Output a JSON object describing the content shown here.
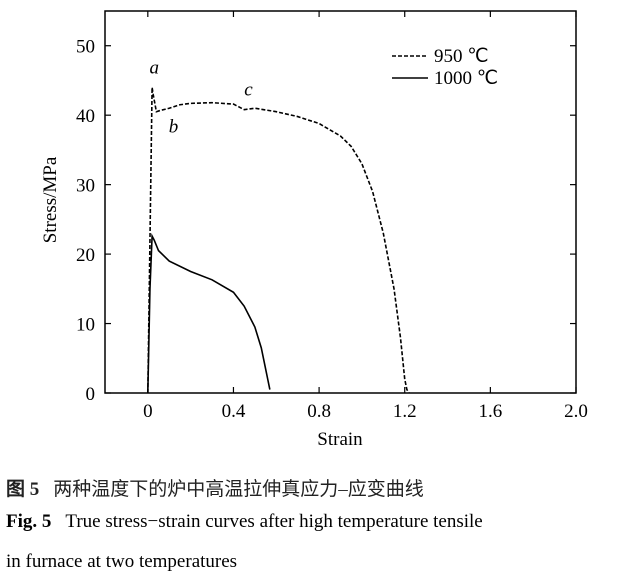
{
  "chart_data": {
    "type": "line",
    "x_label": "Strain",
    "y_label": "Stress/MPa",
    "xlim": [
      -0.2,
      2.0
    ],
    "ylim": [
      0,
      55
    ],
    "xticks": [
      0,
      0.4,
      0.8,
      1.2,
      1.6,
      {
        "value": 2.0,
        "label": "2.0"
      }
    ],
    "yticks": [
      0,
      10,
      20,
      30,
      40,
      50
    ],
    "legend": "upper right",
    "annotations": [
      "a",
      "b",
      "c"
    ],
    "series": [
      {
        "name": "950 ℃",
        "color": "#000000",
        "dashed": true,
        "x": [
          0,
          0.02,
          0.025,
          0.04,
          0.06,
          0.1,
          0.15,
          0.2,
          0.3,
          0.4,
          0.45,
          0.5,
          0.6,
          0.7,
          0.8,
          0.9,
          0.95,
          1.0,
          1.05,
          1.1,
          1.15,
          1.18,
          1.2,
          1.21,
          1.22
        ],
        "values": [
          0,
          44,
          43,
          40.5,
          40.7,
          41,
          41.5,
          41.7,
          41.8,
          41.6,
          40.8,
          41,
          40.5,
          39.8,
          38.8,
          37,
          35.5,
          33,
          29,
          23,
          15,
          8,
          2,
          0.5,
          0
        ]
      },
      {
        "name": "1000 ℃",
        "color": "#000000",
        "dashed": false,
        "x": [
          0,
          0.01,
          0.02,
          0.03,
          0.05,
          0.1,
          0.2,
          0.3,
          0.4,
          0.45,
          0.5,
          0.53,
          0.55,
          0.56,
          0.57
        ],
        "values": [
          0,
          15,
          22.6,
          22,
          20.5,
          19,
          17.5,
          16.3,
          14.5,
          12.5,
          9.5,
          6.5,
          3.5,
          2,
          0.5
        ]
      }
    ]
  },
  "caption": {
    "zh_label": "图 5",
    "zh_text": "两种温度下的炉中高温拉伸真应力–应变曲线",
    "en_label": "Fig. 5",
    "en_line_1": "True stress−strain curves after high temperature tensile",
    "en_line_2": "in furnace at two temperatures"
  }
}
